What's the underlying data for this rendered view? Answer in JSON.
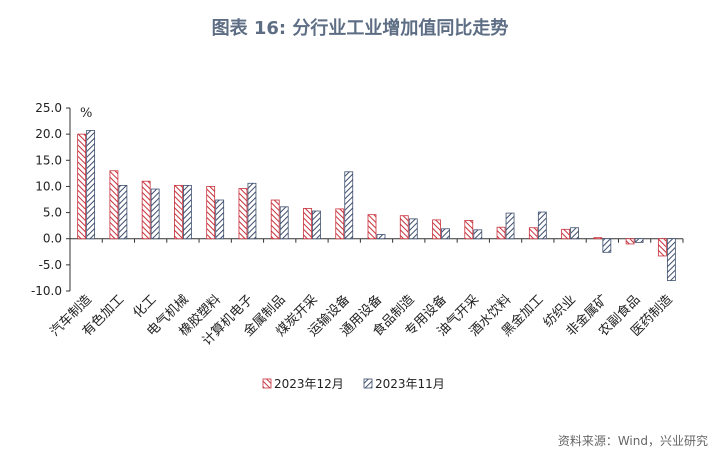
{
  "title": "图表 16: 分行业工业增加值同比走势",
  "source": "资料来源：Wind，兴业研究",
  "chart_data": {
    "type": "bar",
    "unit_label": "%",
    "ylim": [
      -10,
      25
    ],
    "yticks": [
      "25.0",
      "20.0",
      "15.0",
      "10.0",
      "5.0",
      "0.0",
      "-5.0",
      "-10.0"
    ],
    "categories": [
      "汽车制造",
      "有色加工",
      "化工",
      "电气机械",
      "橡胶塑料",
      "计算机电子",
      "金属制品",
      "煤炭开采",
      "运输设备",
      "通用设备",
      "食品制造",
      "专用设备",
      "油气开采",
      "酒水饮料",
      "黑金加工",
      "纺织业",
      "非金属矿",
      "农副食品",
      "医药制造"
    ],
    "series": [
      {
        "name": "2023年12月",
        "color": "#c8323c",
        "values": [
          20.0,
          13.0,
          11.0,
          10.2,
          10.0,
          9.6,
          7.4,
          5.8,
          5.7,
          4.6,
          4.4,
          3.6,
          3.5,
          2.2,
          2.1,
          1.8,
          0.2,
          -1.0,
          -3.3
        ]
      },
      {
        "name": "2023年11月",
        "color": "#3e4f6e",
        "values": [
          20.7,
          10.2,
          9.5,
          10.2,
          7.4,
          10.6,
          6.1,
          5.3,
          12.8,
          0.8,
          3.8,
          1.9,
          1.7,
          4.9,
          5.1,
          2.1,
          -2.6,
          -0.7,
          -8.0
        ]
      }
    ],
    "grid": false,
    "legend_position": "bottom"
  }
}
